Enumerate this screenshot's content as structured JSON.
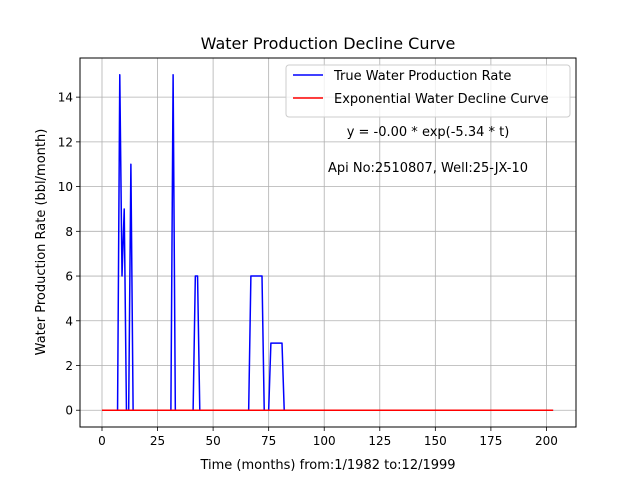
{
  "chart_data": {
    "type": "line",
    "title": "Water Production Decline Curve",
    "xlabel": "Time (months) from:1/1982 to:12/1999",
    "ylabel": "Water Production Rate (bbl/month)",
    "xlim": [
      -9.9,
      213.3
    ],
    "ylim": [
      -0.75,
      15.75
    ],
    "xticks": [
      0,
      25,
      50,
      75,
      100,
      125,
      150,
      175,
      200
    ],
    "yticks": [
      0,
      2,
      4,
      6,
      8,
      10,
      12,
      14
    ],
    "grid": true,
    "legend_position": "top-right",
    "annotations": [
      "y = -0.00 * exp(-5.34 * t)",
      "Api No:2510807, Well:25-JX-10"
    ],
    "series": [
      {
        "name": "True Water Production Rate",
        "color": "#0000ff",
        "x": [
          0,
          7,
          8,
          9,
          10,
          11,
          12,
          13,
          14,
          31,
          32,
          33,
          41,
          42,
          43,
          44,
          66,
          67,
          72,
          73,
          75,
          76,
          81,
          82,
          203
        ],
        "y": [
          0,
          0,
          15,
          6,
          9,
          0,
          0,
          11,
          0,
          0,
          15,
          0,
          0,
          6,
          6,
          0,
          0,
          6,
          6,
          0,
          0,
          3,
          3,
          0,
          0
        ]
      },
      {
        "name": "Exponential Water Decline Curve",
        "color": "#ff0000",
        "x": [
          0,
          203
        ],
        "y": [
          0,
          0
        ]
      }
    ]
  }
}
